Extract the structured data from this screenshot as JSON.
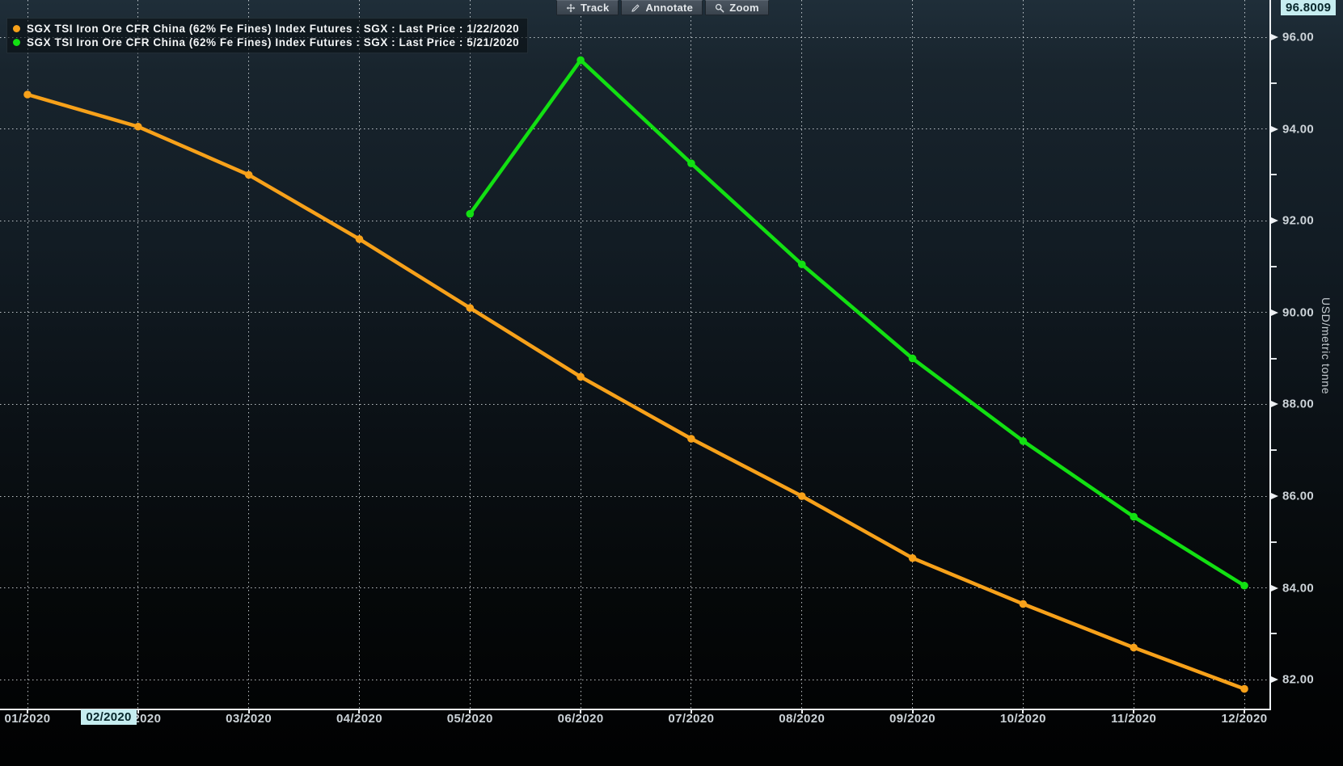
{
  "toolbar": {
    "track": "Track",
    "annotate": "Annotate",
    "zoom": "Zoom"
  },
  "cursor": {
    "x_label": "02/2020",
    "y_value": "96.8009",
    "highlight_bg": "#c6edf0",
    "highlight_text": "#08272b"
  },
  "axis": {
    "y_title": "USD/metric tonne",
    "x_labels": [
      "01/2020",
      "02/2020",
      "03/2020",
      "04/2020",
      "05/2020",
      "06/2020",
      "07/2020",
      "08/2020",
      "09/2020",
      "10/2020",
      "11/2020",
      "12/2020"
    ],
    "y_major": [
      96,
      94,
      92,
      90,
      88,
      86,
      84,
      82
    ],
    "y_minor": [
      95,
      93,
      91,
      89,
      87,
      85,
      83
    ]
  },
  "colors": {
    "orange_series": "#f7a11a",
    "green_series": "#12e012",
    "grid": "#ecf2f6",
    "axis_line": "#eceff2",
    "label_text": "#ccd3d8",
    "background_top": "#1f2e39",
    "background_bottom": "#010202"
  },
  "chart_data": {
    "type": "line",
    "title": "",
    "categories": [
      "01/2020",
      "02/2020",
      "03/2020",
      "04/2020",
      "05/2020",
      "06/2020",
      "07/2020",
      "08/2020",
      "09/2020",
      "10/2020",
      "11/2020",
      "12/2020"
    ],
    "series": [
      {
        "name": "SGX TSI Iron Ore CFR China (62% Fe Fines) Index Futures : SGX : Last Price : 1/22/2020",
        "color": "#f7a11a",
        "values": [
          94.75,
          94.05,
          93.0,
          91.6,
          90.1,
          88.6,
          87.25,
          86.0,
          84.65,
          83.65,
          82.7,
          81.8
        ]
      },
      {
        "name": "SGX TSI Iron Ore CFR China (62% Fe Fines) Index Futures : SGX : Last Price : 5/21/2020",
        "color": "#12e012",
        "values": [
          null,
          null,
          null,
          null,
          92.15,
          95.5,
          93.25,
          91.05,
          89.0,
          87.2,
          85.55,
          84.05
        ]
      }
    ],
    "xlabel": "",
    "ylabel": "USD/metric tonne",
    "ylim": [
      81.4,
      96.81
    ],
    "grid": true,
    "legend_position": "top-left",
    "cursor_readout": {
      "x": "02/2020",
      "y": "96.8009"
    }
  }
}
